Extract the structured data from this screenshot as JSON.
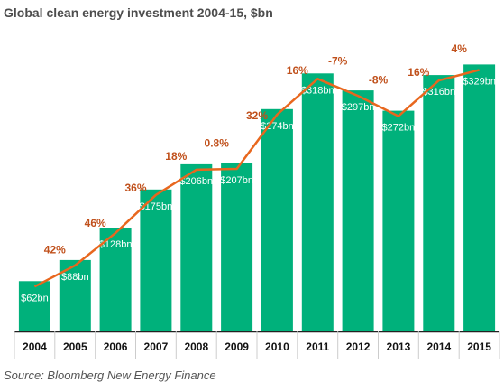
{
  "title": "Global clean energy investment 2004-15, $bn",
  "source": "Source: Bloomberg New Energy Finance",
  "colors": {
    "bar": "#00b17b",
    "line": "#e8671e",
    "growth_label": "#c0501b",
    "bar_label": "#ffffff",
    "axis": "#222222",
    "title": "#4d4d4d"
  },
  "chart_data": {
    "type": "bar",
    "categories": [
      "2004",
      "2005",
      "2006",
      "2007",
      "2008",
      "2009",
      "2010",
      "2011",
      "2012",
      "2013",
      "2014",
      "2015"
    ],
    "values": [
      62,
      88,
      128,
      175,
      206,
      207,
      274,
      318,
      297,
      272,
      316,
      329
    ],
    "bar_labels": [
      "$62bn",
      "$88bn",
      "$128bn",
      "$175bn",
      "$206bn",
      "$207bn",
      "$274bn",
      "$318bn",
      "$297bn",
      "$272bn",
      "$316bn",
      "$329bn"
    ],
    "growth_labels": [
      "",
      "42%",
      "46%",
      "36%",
      "18%",
      "0.8%",
      "32%",
      "16%",
      "-7%",
      "-8%",
      "16%",
      "4%"
    ],
    "overlay_line": "growth",
    "ylim": [
      0,
      345
    ],
    "grid": false,
    "legend": "none",
    "xlabel": "",
    "ylabel": ""
  }
}
